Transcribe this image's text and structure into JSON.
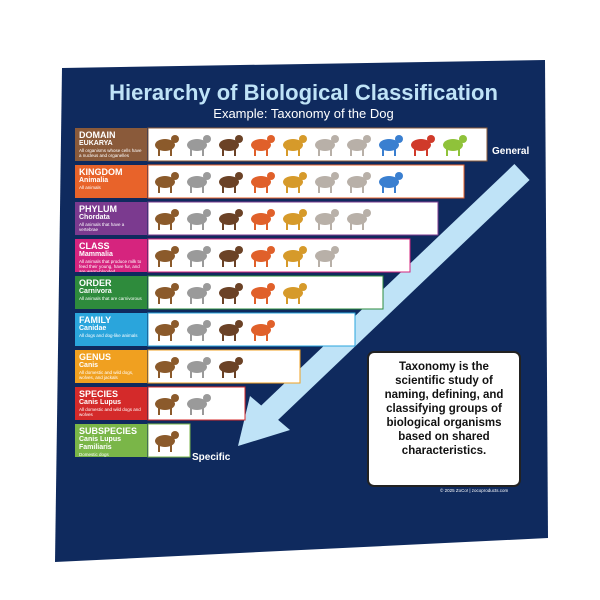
{
  "title": "Hierarchy of Biological Classification",
  "subtitle": "Example: Taxonomy of the Dog",
  "ranks": [
    {
      "rank": "DOMAIN",
      "name": "EUKARYA",
      "description": "All organisms whose cells have a nucleus and organelles"
    },
    {
      "rank": "KINGDOM",
      "name": "Animalia",
      "description": "All animals"
    },
    {
      "rank": "PHYLUM",
      "name": "Chordata",
      "description": "All animals that have a vertebrae"
    },
    {
      "rank": "CLASS",
      "name": "Mammalia",
      "description": "All animals that produce milk to feed their young, have fur, and are warm-blooded"
    },
    {
      "rank": "ORDER",
      "name": "Carnivora",
      "description": "All animals that are carnivorous"
    },
    {
      "rank": "FAMILY",
      "name": "Canidae",
      "description": "All dogs and dog-like animals"
    },
    {
      "rank": "GENUS",
      "name": "Canis",
      "description": "All domestic and wild dogs, wolves, and jackals"
    },
    {
      "rank": "SPECIES",
      "name": "Canis Lupus",
      "description": "All domestic and wild dogs and wolves"
    },
    {
      "rank": "SUBSPECIES",
      "name": "Canis Lupus Familiaris",
      "description": "Domestic dogs"
    }
  ],
  "general_label": "General",
  "specific_label": "Specific",
  "note": "Taxonomy is the scientific study of naming, defining, and classifying groups of biological organisms based on shared characteristics.",
  "copyright": "© 2025 ZoCo! | zocoproducts.com"
}
